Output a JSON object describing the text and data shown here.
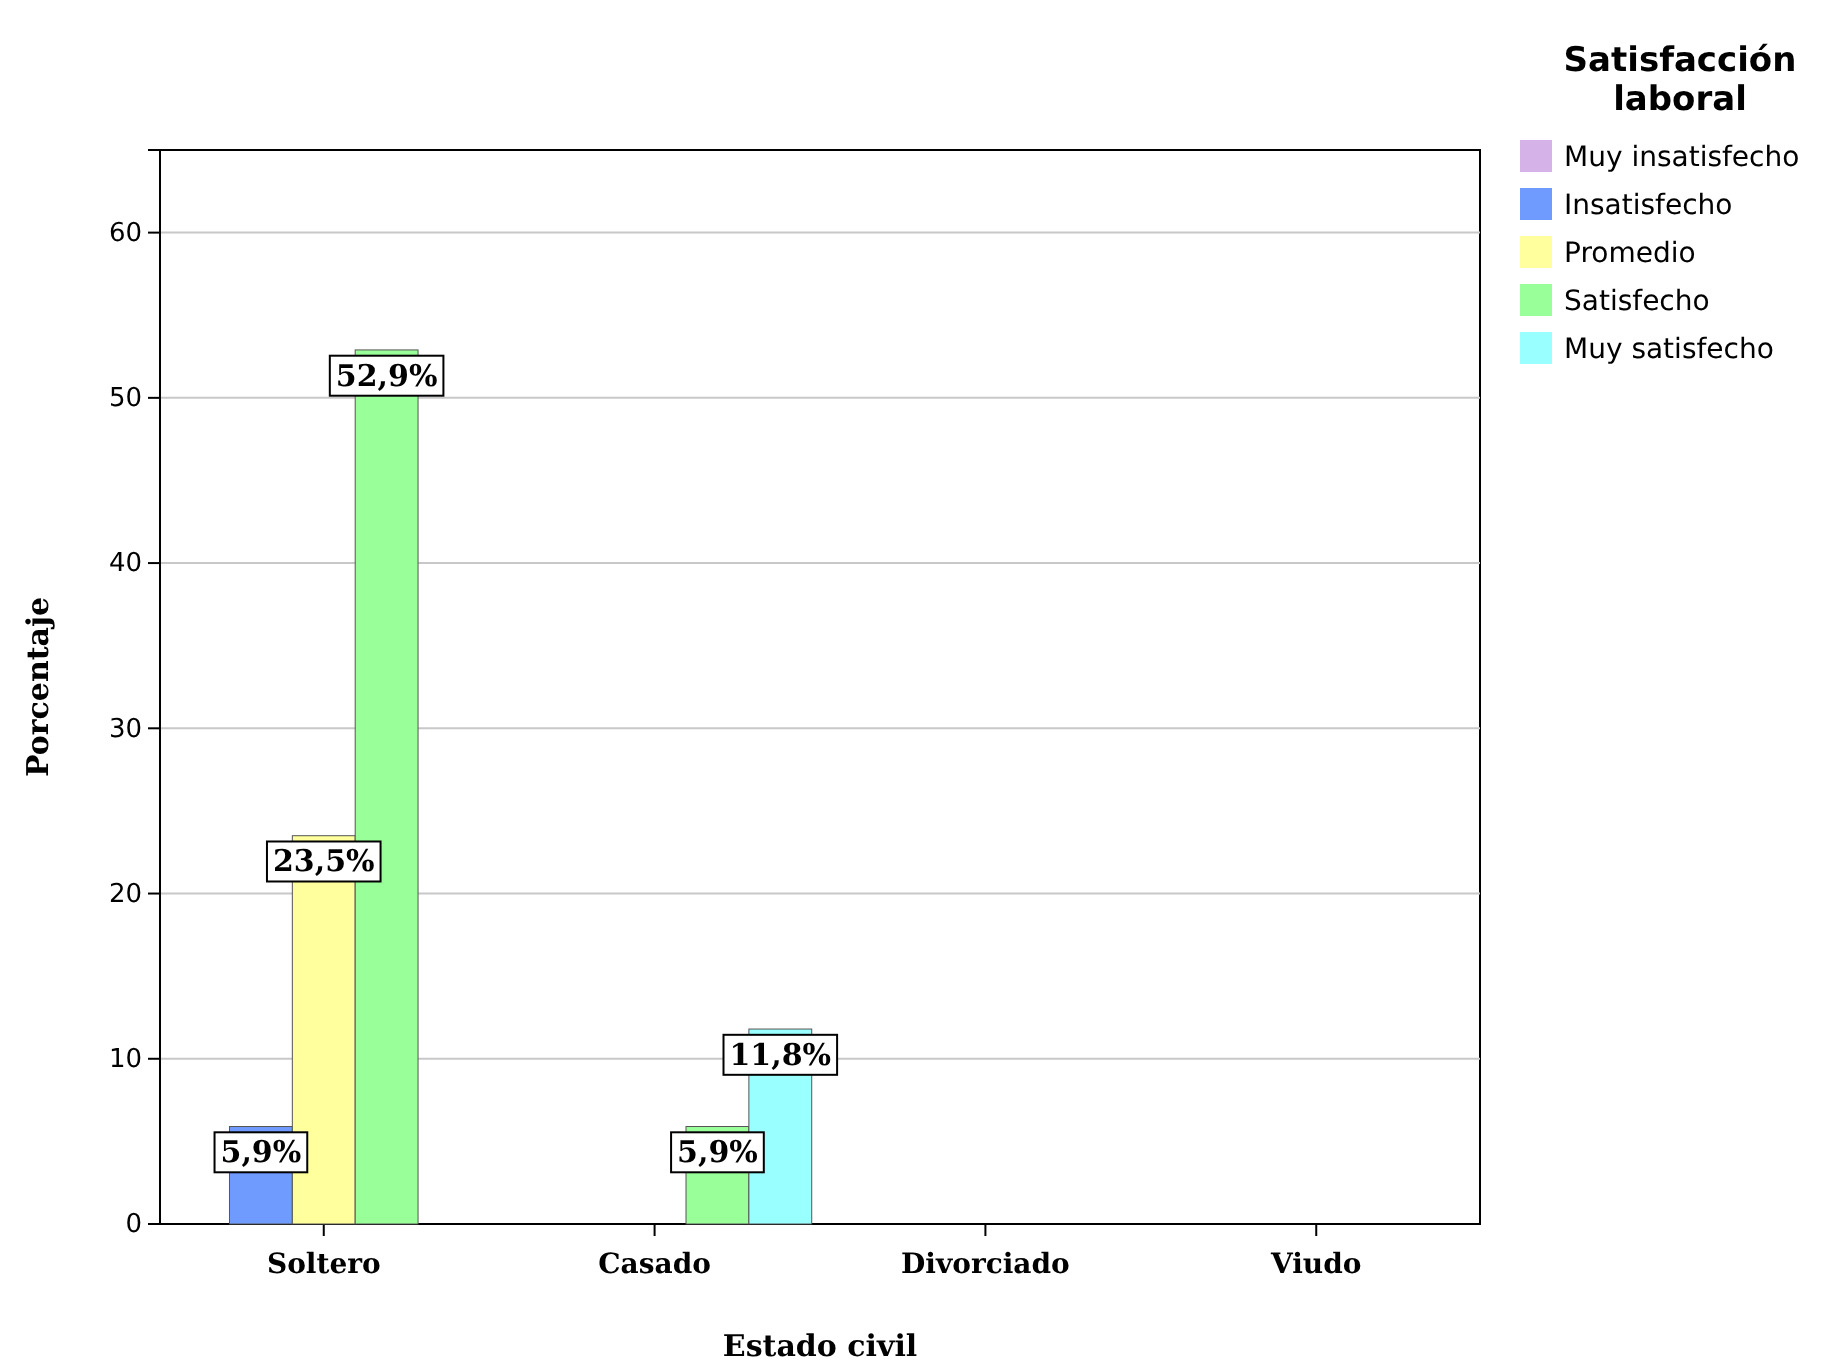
{
  "chart_data": {
    "type": "bar",
    "xlabel": "Estado civil",
    "ylabel": "Porcentaje",
    "legend_title": "Satisfacción laboral",
    "categories": [
      "Soltero",
      "Casado",
      "Divorciado",
      "Viudo"
    ],
    "series": [
      {
        "name": "Muy insatisfecho",
        "color": "#d5b3e8",
        "values": [
          null,
          null,
          null,
          null
        ],
        "value_labels": [
          null,
          null,
          null,
          null
        ]
      },
      {
        "name": "Insatisfecho",
        "color": "#6f9bff",
        "values": [
          5.9,
          null,
          null,
          null
        ],
        "value_labels": [
          "5,9%",
          null,
          null,
          null
        ]
      },
      {
        "name": "Promedio",
        "color": "#ffff9e",
        "values": [
          23.5,
          null,
          null,
          null
        ],
        "value_labels": [
          "23,5%",
          null,
          null,
          null
        ]
      },
      {
        "name": "Satisfecho",
        "color": "#99ff99",
        "values": [
          52.9,
          5.9,
          null,
          null
        ],
        "value_labels": [
          "52,9%",
          "5,9%",
          null,
          null
        ]
      },
      {
        "name": "Muy satisfecho",
        "color": "#99ffff",
        "values": [
          null,
          11.8,
          null,
          null
        ],
        "value_labels": [
          null,
          "11,8%",
          null,
          null
        ]
      }
    ],
    "ylim": [
      0,
      65
    ],
    "yticks": [
      0,
      10,
      20,
      30,
      40,
      50,
      60
    ],
    "grid": "y",
    "legend": "top right"
  }
}
